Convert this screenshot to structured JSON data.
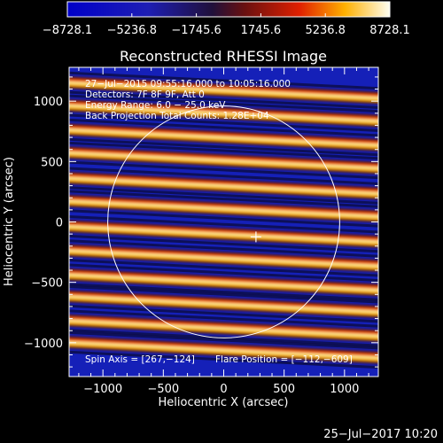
{
  "chart_data": {
    "type": "heatmap",
    "title": "Reconstructed RHESSI Image",
    "xlabel": "Heliocentric X (arcsec)",
    "ylabel": "Heliocentric Y (arcsec)",
    "xlim": [
      -1280,
      1280
    ],
    "ylim": [
      -1280,
      1280
    ],
    "xticks": [
      {
        "value": -1000,
        "label": "−1000"
      },
      {
        "value": -500,
        "label": "−500"
      },
      {
        "value": 0,
        "label": "0"
      },
      {
        "value": 500,
        "label": "500"
      },
      {
        "value": 1000,
        "label": "1000"
      }
    ],
    "yticks": [
      {
        "value": 1000,
        "label": "1000"
      },
      {
        "value": 500,
        "label": "500"
      },
      {
        "value": 0,
        "label": "0"
      },
      {
        "value": -500,
        "label": "−500"
      },
      {
        "value": -1000,
        "label": "−1000"
      }
    ],
    "colorbar": {
      "range": [
        -8728.1,
        8728.1
      ],
      "ticks": [
        {
          "value": -8728.1,
          "label": "−8728.1"
        },
        {
          "value": -5236.8,
          "label": "−5236.8"
        },
        {
          "value": -1745.6,
          "label": "−1745.6"
        },
        {
          "value": 1745.6,
          "label": "1745.6"
        },
        {
          "value": 5236.8,
          "label": "5236.8"
        },
        {
          "value": 8728.1,
          "label": "8728.1"
        }
      ]
    },
    "info_lines": [
      "27−Jul−2015 09:55:16.000 to 10:05:16.000",
      "Detectors: 7F 8F 9F, Att 0",
      "Energy Range: 6.0 − 25.0 keV",
      "Back Projection    Total Counts: 1.28E+04"
    ],
    "spin_axis": "Spin Axis = [267,−124]",
    "flare_position": "Flare Position = [−112,−609]",
    "marker": {
      "x": 267,
      "y": -124
    },
    "limb_circle": {
      "center": [
        0,
        0
      ],
      "radius": 960
    },
    "fringes": {
      "bright_band_centers_y": [
        1090,
        900,
        700,
        510,
        300,
        110,
        -100,
        -300,
        -500,
        -680,
        -880,
        -1060
      ],
      "tilt_per_1000_arcsec": -50
    }
  },
  "footer": {
    "date": "25−Jul−2017 10:20"
  }
}
